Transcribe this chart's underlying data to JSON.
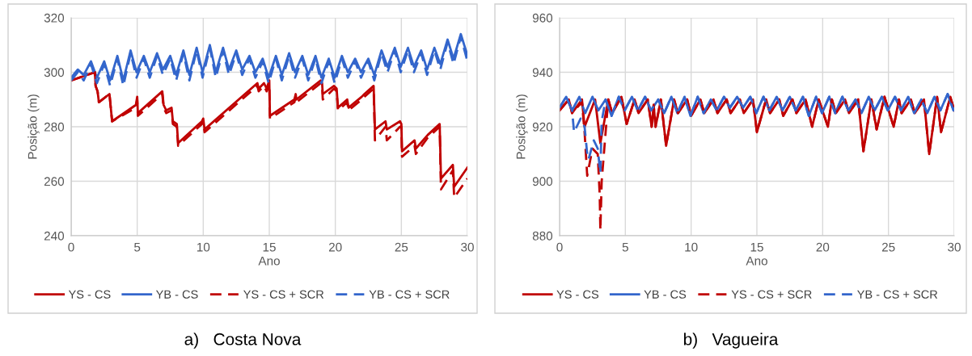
{
  "chart_data": [
    {
      "type": "line",
      "xlabel": "Ano",
      "ylabel": "Posição (m)",
      "xlim": [
        0,
        30
      ],
      "xticks": [
        0,
        5,
        10,
        15,
        20,
        25,
        30
      ],
      "ylim": [
        240,
        320
      ],
      "yticks": [
        240,
        260,
        280,
        300,
        320
      ],
      "grid": true,
      "legend": "bottom",
      "marker": "none",
      "annotations": [
        "a)   Costa Nova"
      ],
      "series": [
        {
          "name": "YS - CS",
          "color": "#c00000",
          "line_style": "solid",
          "x": [
            0,
            1.8,
            1.85,
            2,
            2.1,
            2.9,
            3.0,
            3.1,
            4.9,
            5,
            5.05,
            6.9,
            7,
            7.2,
            7.6,
            7.7,
            8.0,
            8.1,
            9.9,
            10,
            10.1,
            14.1,
            14.2,
            14.6,
            14.8,
            15,
            15.05,
            16.9,
            17,
            17.05,
            18.9,
            19,
            19.05,
            19.9,
            20.1,
            20.2,
            20.9,
            21,
            22,
            22.2,
            22.9,
            23,
            23.8,
            23.9,
            24.9,
            25,
            25.05,
            26,
            26.1,
            27,
            27.9,
            28,
            28.9,
            29,
            30
          ],
          "values": [
            297,
            300,
            295,
            293,
            289,
            292,
            287,
            282,
            288,
            291,
            285,
            293,
            288,
            286,
            287,
            282,
            281,
            274,
            282,
            283,
            279,
            296,
            294,
            296,
            294,
            297,
            284,
            290,
            292,
            290,
            297,
            296,
            292,
            295,
            294,
            287,
            290,
            287,
            291,
            292,
            295,
            279,
            282,
            279,
            282,
            281,
            271,
            275,
            272,
            277,
            281,
            261,
            266,
            258,
            265
          ]
        },
        {
          "name": "YB - CS",
          "color": "#3366cc",
          "line_style": "solid",
          "x": [
            0,
            0.5,
            0.95,
            1.5,
            1.95,
            2.5,
            2.95,
            3.5,
            3.95,
            4.5,
            4.95,
            5.5,
            5.95,
            6.5,
            6.95,
            7.5,
            7.95,
            8.5,
            8.95,
            9.5,
            9.95,
            10.5,
            10.95,
            11.5,
            11.95,
            12.5,
            12.95,
            13.5,
            13.95,
            14.5,
            14.95,
            15.5,
            15.95,
            16.5,
            16.95,
            17.5,
            17.95,
            18.5,
            18.95,
            19.5,
            19.95,
            20.5,
            20.95,
            21.5,
            21.95,
            22.5,
            22.95,
            23.5,
            23.95,
            24.5,
            24.95,
            25.5,
            25.95,
            26.5,
            26.95,
            27.5,
            27.95,
            28.5,
            28.95,
            29.5,
            29.95,
            30
          ],
          "values": [
            298,
            301,
            299,
            304,
            298,
            304,
            297,
            306,
            297,
            308,
            300,
            306,
            300,
            307,
            301,
            306,
            299,
            308,
            299,
            309,
            300,
            310,
            300,
            309,
            301,
            308,
            301,
            306,
            300,
            305,
            298,
            306,
            299,
            307,
            300,
            306,
            299,
            306,
            298,
            305,
            298,
            306,
            300,
            305,
            300,
            305,
            299,
            308,
            302,
            309,
            302,
            309,
            302,
            308,
            301,
            309,
            303,
            312,
            305,
            314,
            307,
            306
          ]
        },
        {
          "name": "YS - CS + SCR",
          "color": "#c00000",
          "line_style": "dashed",
          "x": [
            0,
            1.8,
            1.85,
            2,
            2.1,
            2.9,
            3.0,
            3.1,
            4.9,
            5,
            5.05,
            6.9,
            7,
            7.2,
            7.6,
            7.7,
            8.0,
            8.1,
            9.9,
            10,
            10.1,
            14.1,
            14.2,
            14.6,
            14.8,
            15,
            15.05,
            16.9,
            17,
            17.05,
            18.9,
            19,
            19.05,
            19.9,
            20.1,
            20.2,
            20.9,
            21,
            22,
            22.2,
            22.9,
            23,
            23.8,
            23.9,
            24.9,
            25,
            25.05,
            26,
            26.1,
            27,
            27.9,
            28,
            28.9,
            29,
            30
          ],
          "values": [
            297,
            300,
            295,
            293,
            289,
            292,
            287,
            282,
            287,
            290,
            284,
            292,
            287,
            285,
            286,
            281,
            280,
            273,
            281,
            282,
            278,
            295,
            293,
            295,
            293,
            296,
            283,
            289,
            291,
            289,
            296,
            295,
            290,
            294,
            293,
            286,
            289,
            286,
            290,
            291,
            294,
            275,
            280,
            275,
            280,
            280,
            269,
            273,
            270,
            276,
            280,
            257,
            264,
            254,
            261
          ]
        },
        {
          "name": "YB - CS + SCR",
          "color": "#3366cc",
          "line_style": "dashed",
          "x": [
            0,
            0.5,
            0.95,
            1.5,
            1.95,
            2.5,
            2.95,
            3.5,
            3.95,
            4.5,
            4.95,
            5.5,
            5.95,
            6.5,
            6.95,
            7.5,
            7.95,
            8.5,
            8.95,
            9.5,
            9.95,
            10.5,
            10.95,
            11.5,
            11.95,
            12.5,
            12.95,
            13.5,
            13.95,
            14.5,
            14.95,
            15.5,
            15.95,
            16.5,
            16.95,
            17.5,
            17.95,
            18.5,
            18.95,
            19.5,
            19.95,
            20.5,
            20.95,
            21.5,
            21.95,
            22.5,
            22.95,
            23.5,
            23.95,
            24.5,
            24.95,
            25.5,
            25.95,
            26.5,
            26.95,
            27.5,
            27.95,
            28.5,
            28.95,
            29.5,
            29.95,
            30
          ],
          "values": [
            297,
            300,
            297,
            303,
            296,
            303,
            295,
            305,
            295,
            307,
            298,
            305,
            298,
            306,
            299,
            305,
            297,
            307,
            297,
            308,
            298,
            309,
            298,
            308,
            299,
            307,
            299,
            305,
            298,
            304,
            296,
            305,
            297,
            306,
            298,
            305,
            297,
            305,
            296,
            304,
            296,
            305,
            298,
            304,
            298,
            304,
            297,
            307,
            300,
            308,
            300,
            308,
            300,
            307,
            299,
            308,
            301,
            311,
            303,
            313,
            305,
            305
          ]
        }
      ]
    },
    {
      "type": "line",
      "xlabel": "Ano",
      "ylabel": "Posição (m)",
      "xlim": [
        0,
        30
      ],
      "xticks": [
        0,
        5,
        10,
        15,
        20,
        25,
        30
      ],
      "ylim": [
        880,
        960
      ],
      "yticks": [
        880,
        900,
        920,
        940,
        960
      ],
      "grid": true,
      "legend": "bottom",
      "marker": "none",
      "annotations": [
        "b)   Vagueira"
      ],
      "series": [
        {
          "name": "YS - CS",
          "color": "#c00000",
          "line_style": "solid",
          "x": [
            0,
            0.7,
            0.95,
            1.7,
            1.9,
            2.7,
            3.1,
            3.7,
            4.0,
            4.7,
            5.1,
            5.7,
            6.0,
            6.7,
            7.0,
            7.15,
            7.3,
            7.7,
            8.1,
            8.7,
            9.0,
            9.7,
            10.0,
            10.7,
            11.0,
            11.7,
            12.0,
            12.7,
            13.0,
            13.7,
            14.0,
            14.7,
            15.0,
            15.7,
            16.0,
            16.7,
            17.0,
            17.7,
            18.0,
            18.7,
            19.2,
            19.7,
            20.4,
            20.7,
            21.0,
            21.7,
            22.0,
            22.7,
            23.1,
            23.7,
            24.1,
            24.7,
            25.4,
            25.8,
            26.0,
            26.7,
            27.0,
            27.7,
            28.1,
            28.7,
            29.0,
            29.7,
            30
          ],
          "values": [
            926,
            930,
            925,
            930,
            920,
            930,
            914,
            930,
            925,
            931,
            921,
            930,
            925,
            930,
            920,
            928,
            920,
            930,
            913,
            930,
            925,
            930,
            924,
            930,
            925,
            930,
            925,
            930,
            925,
            930,
            925,
            930,
            918,
            930,
            925,
            930,
            924,
            930,
            925,
            930,
            920,
            930,
            920,
            930,
            925,
            930,
            925,
            930,
            911,
            930,
            919,
            931,
            920,
            930,
            925,
            930,
            925,
            930,
            910,
            931,
            918,
            931,
            926
          ]
        },
        {
          "name": "YB - CS",
          "color": "#3366cc",
          "line_style": "solid",
          "x": [
            0,
            0.5,
            0.95,
            1.5,
            1.95,
            2.5,
            2.95,
            3.5,
            3.95,
            4.5,
            4.95,
            5.5,
            5.95,
            6.5,
            6.95,
            7.5,
            7.95,
            8.5,
            8.95,
            9.5,
            9.95,
            10.5,
            10.95,
            11.5,
            11.95,
            12.5,
            12.95,
            13.5,
            13.95,
            14.5,
            14.95,
            15.5,
            15.95,
            16.5,
            16.95,
            17.5,
            17.95,
            18.5,
            18.95,
            19.5,
            19.95,
            20.5,
            20.95,
            21.5,
            21.95,
            22.5,
            22.95,
            23.5,
            23.95,
            24.5,
            24.95,
            25.5,
            25.95,
            26.5,
            26.95,
            27.5,
            27.95,
            28.5,
            28.95,
            29.5,
            29.95,
            30
          ],
          "values": [
            927,
            931,
            926,
            931,
            925,
            931,
            926,
            930,
            924,
            931,
            926,
            931,
            926,
            931,
            926,
            930,
            925,
            931,
            925,
            931,
            924,
            931,
            925,
            930,
            926,
            931,
            927,
            931,
            927,
            931,
            925,
            931,
            926,
            931,
            926,
            931,
            926,
            931,
            924,
            931,
            925,
            931,
            925,
            931,
            926,
            930,
            925,
            931,
            926,
            931,
            926,
            931,
            926,
            931,
            925,
            930,
            925,
            931,
            926,
            932,
            926,
            927
          ]
        },
        {
          "name": "YS - CS + SCR",
          "color": "#c00000",
          "line_style": "dashed",
          "x": [
            0,
            0.7,
            0.95,
            1.7,
            1.9,
            2.1,
            2.5,
            2.9,
            3.05,
            3.1,
            3.2,
            3.7,
            4.0,
            4.7,
            5.1,
            5.7,
            6.0,
            6.7,
            7.0,
            7.15,
            7.3,
            7.7,
            8.1,
            8.7,
            9.0,
            9.7,
            10.0,
            10.7,
            11.0,
            11.7,
            12.0,
            12.7,
            13.0,
            13.7,
            14.0,
            14.7,
            15.0,
            15.7,
            16.0,
            16.7,
            17.0,
            17.7,
            18.0,
            18.7,
            19.2,
            19.7,
            20.4,
            20.7,
            21.0,
            21.7,
            22.0,
            22.7,
            23.1,
            23.7,
            24.1,
            24.7,
            25.4,
            25.8,
            26.0,
            26.7,
            27.0,
            27.7,
            28.1,
            28.7,
            29.0,
            29.7,
            30
          ],
          "values": [
            926,
            930,
            925,
            929,
            918,
            902,
            912,
            910,
            895,
            882,
            900,
            930,
            925,
            931,
            921,
            930,
            925,
            930,
            920,
            928,
            920,
            930,
            913,
            930,
            925,
            930,
            924,
            930,
            925,
            930,
            925,
            930,
            925,
            930,
            925,
            930,
            918,
            930,
            925,
            930,
            924,
            930,
            925,
            930,
            920,
            930,
            920,
            930,
            925,
            930,
            925,
            930,
            911,
            930,
            919,
            931,
            920,
            930,
            925,
            930,
            925,
            930,
            910,
            931,
            918,
            931,
            926
          ]
        },
        {
          "name": "YB - CS + SCR",
          "color": "#3366cc",
          "line_style": "dashed",
          "x": [
            0,
            0.5,
            0.95,
            1.1,
            1.3,
            1.6,
            1.9,
            2.1,
            2.2,
            2.6,
            2.9,
            3.05,
            3.1,
            3.2,
            3.5,
            3.95,
            4.5,
            4.95,
            5.5,
            5.95,
            6.5,
            6.95,
            7.5,
            7.95,
            8.5,
            8.95,
            9.5,
            9.95,
            10.5,
            10.95,
            11.5,
            11.95,
            12.5,
            12.95,
            13.5,
            13.95,
            14.5,
            14.95,
            15.5,
            15.95,
            16.5,
            16.95,
            17.5,
            17.95,
            18.5,
            18.95,
            19.5,
            19.95,
            20.5,
            20.95,
            21.5,
            21.95,
            22.5,
            22.95,
            23.5,
            23.95,
            24.5,
            24.95,
            25.5,
            25.95,
            26.5,
            26.95,
            27.5,
            27.95,
            28.5,
            28.95,
            29.5,
            29.95,
            30
          ],
          "values": [
            927,
            931,
            926,
            918,
            920,
            923,
            920,
            910,
            908,
            915,
            912,
            905,
            903,
            922,
            930,
            924,
            931,
            926,
            931,
            926,
            931,
            926,
            930,
            925,
            931,
            925,
            931,
            924,
            931,
            925,
            930,
            926,
            931,
            927,
            931,
            927,
            931,
            925,
            931,
            926,
            931,
            926,
            931,
            926,
            931,
            924,
            931,
            925,
            931,
            925,
            931,
            926,
            930,
            925,
            931,
            926,
            931,
            926,
            931,
            926,
            931,
            925,
            930,
            925,
            931,
            926,
            932,
            926,
            927
          ]
        }
      ]
    }
  ]
}
